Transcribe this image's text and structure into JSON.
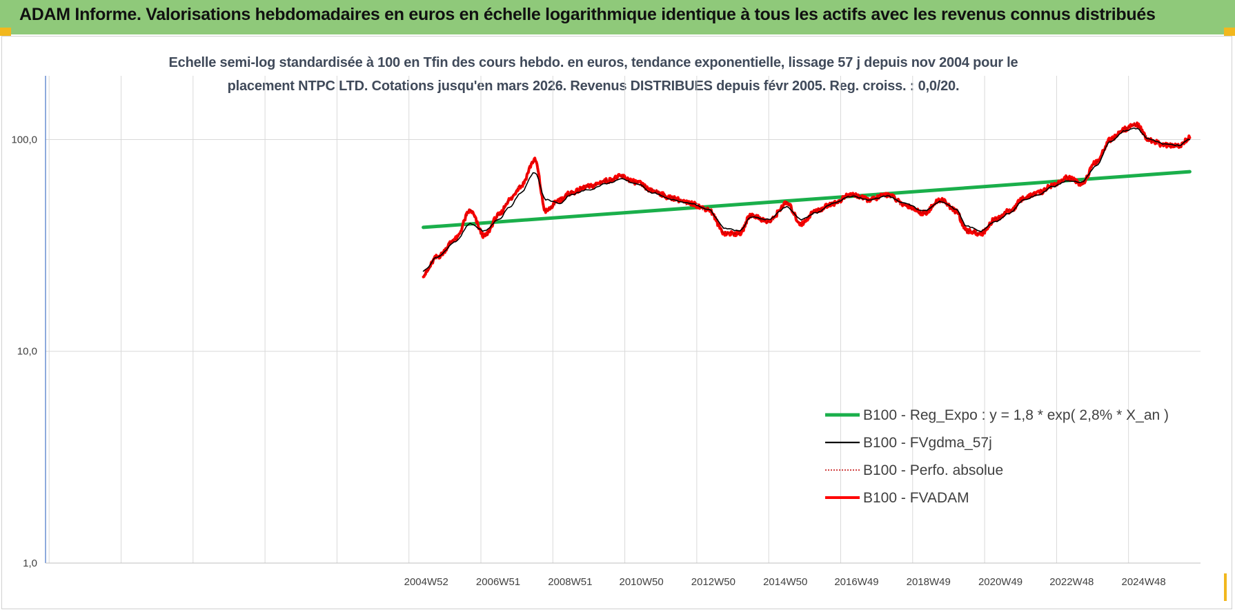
{
  "header": {
    "title": "ADAM Informe. Valorisations hebdomadaires en euros en échelle logarithmique identique à tous les actifs avec les revenus connus distribués"
  },
  "colors": {
    "header_bg": "#8fc97a",
    "corner_marker": "#f2b81e",
    "reg_expo": "#1aaf4b",
    "fvgdma": "#000000",
    "perfo": "#c00000",
    "fvadam": "#ff0000",
    "axis": "#4472c4",
    "grid": "#d9d9d9"
  },
  "chart_data": {
    "type": "line",
    "title_line1": "Echelle semi-log standardisée à 100 en Tfin des cours hebdo. en euros, tendance exponentielle, lissage 57 j depuis nov 2004 pour le",
    "title_line2": "placement NTPC LTD. Cotations jusqu'en mars 2026. Revenus DISTRIBUES depuis févr 2005. Reg. croiss. : 0,0/20.",
    "y_scale": "log",
    "ylim": [
      1,
      200
    ],
    "y_ticks": [
      {
        "value": 1,
        "label": "1,0"
      },
      {
        "value": 10,
        "label": "10,0"
      },
      {
        "value": 100,
        "label": "100,0"
      }
    ],
    "xlim": [
      1994.4,
      2026.5
    ],
    "x_ticks": [
      {
        "value": 2004.98,
        "label": "2004W52"
      },
      {
        "value": 2006.98,
        "label": "2006W51"
      },
      {
        "value": 2008.98,
        "label": "2008W51"
      },
      {
        "value": 2010.96,
        "label": "2010W50"
      },
      {
        "value": 2012.96,
        "label": "2012W50"
      },
      {
        "value": 2014.96,
        "label": "2014W50"
      },
      {
        "value": 2016.94,
        "label": "2016W49"
      },
      {
        "value": 2018.94,
        "label": "2018W49"
      },
      {
        "value": 2020.94,
        "label": "2020W49"
      },
      {
        "value": 2022.92,
        "label": "2022W48"
      },
      {
        "value": 2024.92,
        "label": "2024W48"
      }
    ],
    "grid_x": [
      1994.5,
      1996.5,
      1998.5,
      2000.5,
      2002.5,
      2004.5,
      2006.5,
      2008.5,
      2010.5,
      2012.5,
      2014.5,
      2016.5,
      2018.5,
      2020.5,
      2022.5,
      2024.5
    ],
    "legend_position": "bottom-right",
    "series": [
      {
        "key": "reg",
        "name": "B100 - Reg_Expo : y = 1,8 * exp( 2,8% *  X_an )",
        "x": [
          2004.9,
          2026.2
        ],
        "y": [
          38.5,
          70.5
        ]
      },
      {
        "key": "fvgdma",
        "name": "B100 - FVgdma_57j",
        "x": [
          2004.9,
          2005.3,
          2005.8,
          2006.2,
          2006.6,
          2007.0,
          2007.3,
          2007.6,
          2008.0,
          2008.3,
          2008.7,
          2009.0,
          2009.5,
          2010.0,
          2010.4,
          2010.8,
          2011.3,
          2011.8,
          2012.3,
          2012.8,
          2013.3,
          2013.7,
          2014.0,
          2014.5,
          2015.0,
          2015.4,
          2015.8,
          2016.3,
          2016.8,
          2017.3,
          2017.8,
          2018.3,
          2018.8,
          2019.3,
          2019.7,
          2020.0,
          2020.4,
          2020.8,
          2021.2,
          2021.6,
          2022.0,
          2022.4,
          2022.8,
          2023.2,
          2023.6,
          2024.0,
          2024.4,
          2024.7,
          2025.1,
          2025.5,
          2025.9,
          2026.2
        ],
        "y": [
          24,
          28,
          33,
          40,
          37,
          42,
          48,
          56,
          70,
          52,
          50,
          55,
          58,
          62,
          65,
          62,
          56,
          52,
          50,
          47,
          38,
          37,
          43,
          42,
          48,
          42,
          45,
          50,
          54,
          52,
          54,
          50,
          46,
          51,
          47,
          39,
          37,
          41,
          45,
          52,
          55,
          60,
          64,
          63,
          75,
          98,
          110,
          113,
          100,
          95,
          94,
          100
        ]
      },
      {
        "key": "perfo",
        "name": "B100 - Perfo. absolue",
        "x": [
          2004.9,
          2005.3,
          2005.8,
          2006.2,
          2006.6,
          2007.0,
          2007.3,
          2007.6,
          2008.0,
          2008.3,
          2008.7,
          2009.0,
          2009.5,
          2010.0,
          2010.4,
          2010.8,
          2011.3,
          2011.8,
          2012.3,
          2012.8,
          2013.3,
          2013.7,
          2014.0,
          2014.5,
          2015.0,
          2015.4,
          2015.8,
          2016.3,
          2016.8,
          2017.3,
          2017.8,
          2018.3,
          2018.8,
          2019.3,
          2019.7,
          2020.0,
          2020.4,
          2020.8,
          2021.2,
          2021.6,
          2022.0,
          2022.4,
          2022.8,
          2023.2,
          2023.6,
          2024.0,
          2024.4,
          2024.7,
          2025.1,
          2025.5,
          2025.9,
          2026.2
        ],
        "y": [
          23,
          28,
          34,
          46,
          35,
          44,
          52,
          60,
          80,
          46,
          52,
          56,
          60,
          64,
          67,
          63,
          57,
          53,
          50,
          47,
          36,
          36,
          44,
          41,
          50,
          40,
          46,
          50,
          55,
          52,
          55,
          49,
          45,
          52,
          46,
          37,
          36,
          42,
          46,
          53,
          56,
          61,
          66,
          62,
          78,
          100,
          112,
          118,
          99,
          94,
          93,
          102
        ]
      },
      {
        "key": "fvadam",
        "name": "B100 - FVADAM",
        "x": [
          2004.9,
          2005.3,
          2005.8,
          2006.2,
          2006.6,
          2007.0,
          2007.3,
          2007.6,
          2008.0,
          2008.3,
          2008.7,
          2009.0,
          2009.5,
          2010.0,
          2010.4,
          2010.8,
          2011.3,
          2011.8,
          2012.3,
          2012.8,
          2013.3,
          2013.7,
          2014.0,
          2014.5,
          2015.0,
          2015.4,
          2015.8,
          2016.3,
          2016.8,
          2017.3,
          2017.8,
          2018.3,
          2018.8,
          2019.3,
          2019.7,
          2020.0,
          2020.4,
          2020.8,
          2021.2,
          2021.6,
          2022.0,
          2022.4,
          2022.8,
          2023.2,
          2023.6,
          2024.0,
          2024.4,
          2024.7,
          2025.1,
          2025.5,
          2025.9,
          2026.2
        ],
        "y": [
          23,
          28,
          34,
          46,
          35,
          44,
          52,
          60,
          80,
          46,
          52,
          56,
          60,
          64,
          67,
          63,
          57,
          53,
          50,
          47,
          36,
          36,
          44,
          41,
          50,
          40,
          46,
          50,
          55,
          52,
          55,
          49,
          45,
          52,
          46,
          37,
          36,
          42,
          46,
          53,
          56,
          61,
          66,
          62,
          78,
          100,
          112,
          118,
          99,
          94,
          93,
          102
        ]
      }
    ]
  }
}
